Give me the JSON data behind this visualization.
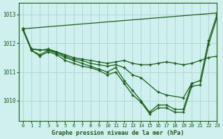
{
  "title": "Graphe pression niveau de la mer (hPa)",
  "bg_color": "#cff0ee",
  "grid_color": "#b0d8d0",
  "line_color": "#1a5c1a",
  "xlim": [
    -0.5,
    23
  ],
  "ylim": [
    1009.3,
    1013.4
  ],
  "yticks": [
    1010,
    1011,
    1012,
    1013
  ],
  "xticks": [
    0,
    1,
    2,
    3,
    4,
    5,
    6,
    7,
    8,
    9,
    10,
    11,
    12,
    13,
    14,
    15,
    16,
    17,
    18,
    19,
    20,
    21,
    22,
    23
  ],
  "series": [
    {
      "x": [
        0,
        1,
        2,
        3,
        4,
        5,
        6,
        7,
        8,
        9,
        10,
        11,
        12,
        13,
        14,
        15,
        16,
        17,
        18,
        19,
        20,
        21,
        22,
        23
      ],
      "y": [
        1012.5,
        1011.8,
        1011.75,
        1011.8,
        1011.7,
        1011.6,
        1011.5,
        1011.45,
        1011.4,
        1011.35,
        1011.3,
        1011.35,
        1011.4,
        1011.3,
        1011.25,
        1011.25,
        1011.3,
        1011.35,
        1011.3,
        1011.25,
        1011.3,
        1011.4,
        1011.5,
        1011.55
      ]
    },
    {
      "x": [
        0,
        1,
        3,
        4,
        5,
        6,
        7,
        8,
        9,
        10,
        11,
        12,
        13,
        14,
        16,
        17,
        19,
        20
      ],
      "y": [
        1012.5,
        1011.8,
        1011.75,
        1011.7,
        1011.55,
        1011.45,
        1011.4,
        1011.3,
        1011.25,
        1011.2,
        1011.25,
        1011.15,
        1010.9,
        1010.8,
        1010.3,
        1010.2,
        1010.1,
        1010.6
      ]
    },
    {
      "x": [
        0,
        1,
        2,
        3,
        4,
        5,
        6,
        7,
        8,
        9,
        10,
        11,
        12,
        13,
        14,
        15,
        16,
        17,
        18,
        19,
        20,
        21,
        22,
        23
      ],
      "y": [
        1012.45,
        1011.75,
        1011.6,
        1011.75,
        1011.65,
        1011.5,
        1011.4,
        1011.3,
        1011.2,
        1011.1,
        1011.0,
        1011.15,
        1010.7,
        1010.35,
        1010.0,
        1009.6,
        1009.85,
        1009.85,
        1009.7,
        1009.7,
        1010.6,
        1010.7,
        1012.1,
        1013.0
      ]
    },
    {
      "x": [
        1,
        2,
        3,
        4,
        5,
        6,
        7,
        8,
        9,
        10,
        11,
        12,
        13,
        14,
        15,
        16,
        17,
        18,
        19,
        20,
        21,
        22,
        23
      ],
      "y": [
        1011.75,
        1011.55,
        1011.7,
        1011.6,
        1011.4,
        1011.3,
        1011.2,
        1011.15,
        1011.05,
        1010.9,
        1011.0,
        1010.6,
        1010.2,
        1009.95,
        1009.55,
        1009.75,
        1009.75,
        1009.6,
        1009.6,
        1010.5,
        1010.55,
        1011.95,
        1012.9
      ]
    }
  ],
  "series_top": {
    "x": [
      0,
      23
    ],
    "y": [
      1012.5,
      1013.05
    ]
  }
}
